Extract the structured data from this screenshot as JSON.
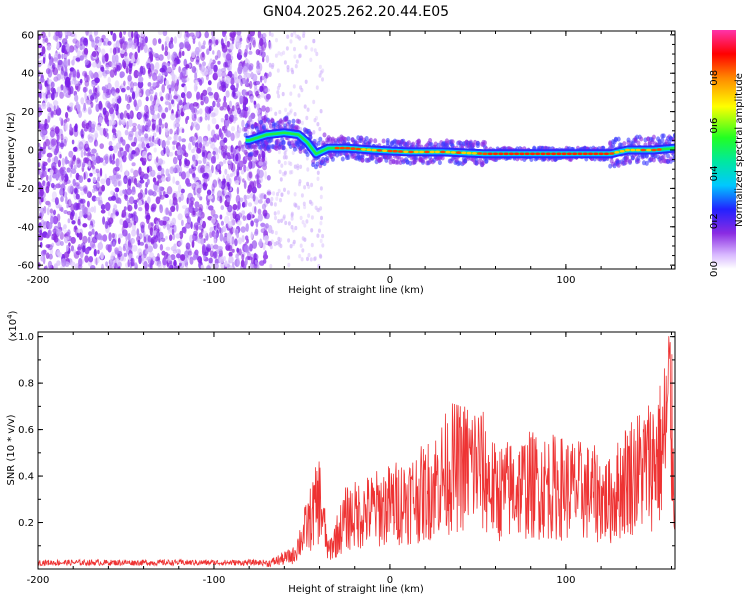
{
  "title": "GN04.2025.262.20.44.E05",
  "chart_data": [
    {
      "type": "heatmap",
      "xlabel": "Height of straight line (km)",
      "ylabel": "Frequency (Hz)",
      "xlim": [
        -200,
        162
      ],
      "ylim": [
        -62,
        62
      ],
      "x_ticks": [
        "-200",
        "-100",
        "0",
        "100"
      ],
      "y_ticks": [
        "-60",
        "-40",
        "-20",
        "0",
        "20",
        "40",
        "60"
      ],
      "colorbar": {
        "label": "Normalized spectral amplitude",
        "range": [
          0,
          1
        ],
        "ticks": [
          "0.0",
          "0.2",
          "0.4",
          "0.6",
          "0.8"
        ]
      },
      "noise_region_km": [
        -200,
        -68
      ],
      "ridge": [
        {
          "x": -80,
          "y": 5
        },
        {
          "x": -70,
          "y": 8
        },
        {
          "x": -60,
          "y": 9
        },
        {
          "x": -52,
          "y": 8
        },
        {
          "x": -47,
          "y": 4
        },
        {
          "x": -42,
          "y": -2
        },
        {
          "x": -35,
          "y": 1
        },
        {
          "x": -25,
          "y": 1
        },
        {
          "x": -10,
          "y": 0
        },
        {
          "x": 10,
          "y": -1
        },
        {
          "x": 30,
          "y": -1
        },
        {
          "x": 55,
          "y": -2
        },
        {
          "x": 100,
          "y": -2
        },
        {
          "x": 125,
          "y": -2
        },
        {
          "x": 135,
          "y": 0
        },
        {
          "x": 150,
          "y": 0
        },
        {
          "x": 162,
          "y": 1
        }
      ]
    },
    {
      "type": "line",
      "xlabel": "Height of straight line (km)",
      "ylabel": "SNR (10 * v/v)",
      "y_scale_label": "(x10",
      "y_scale_exp": "4",
      "y_scale_close": ")",
      "xlim": [
        -200,
        162
      ],
      "ylim": [
        0,
        1.02
      ],
      "x_ticks": [
        "-200",
        "-100",
        "0",
        "100"
      ],
      "y_ticks": [
        "0.2",
        "0.4",
        "0.6",
        "0.8",
        "1.0"
      ],
      "color": "#ee3333",
      "envelope": [
        {
          "x": -200,
          "y": 0.03
        },
        {
          "x": -70,
          "y": 0.03
        },
        {
          "x": -55,
          "y": 0.08
        },
        {
          "x": -45,
          "y": 0.3
        },
        {
          "x": -40,
          "y": 0.42
        },
        {
          "x": -35,
          "y": 0.1
        },
        {
          "x": -25,
          "y": 0.3
        },
        {
          "x": -10,
          "y": 0.35
        },
        {
          "x": 0,
          "y": 0.38
        },
        {
          "x": 20,
          "y": 0.45
        },
        {
          "x": 35,
          "y": 0.6
        },
        {
          "x": 50,
          "y": 0.62
        },
        {
          "x": 60,
          "y": 0.45
        },
        {
          "x": 80,
          "y": 0.5
        },
        {
          "x": 100,
          "y": 0.48
        },
        {
          "x": 115,
          "y": 0.45
        },
        {
          "x": 125,
          "y": 0.4
        },
        {
          "x": 135,
          "y": 0.55
        },
        {
          "x": 145,
          "y": 0.6
        },
        {
          "x": 155,
          "y": 0.7
        },
        {
          "x": 159,
          "y": 1.0
        },
        {
          "x": 162,
          "y": 0.45
        }
      ]
    }
  ]
}
